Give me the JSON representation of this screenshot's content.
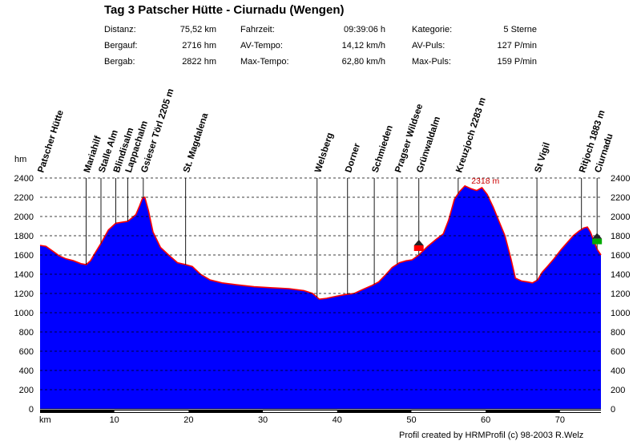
{
  "title": "Tag 3 Patscher Hütte - Ciurnadu (Wengen)",
  "stats": [
    {
      "label": "Distanz:",
      "value": "75,52 km"
    },
    {
      "label": "Bergauf:",
      "value": "2716 hm"
    },
    {
      "label": "Bergab:",
      "value": "2822 hm"
    },
    {
      "label": "Fahrzeit:",
      "value": "09:39:06 h"
    },
    {
      "label": "AV-Tempo:",
      "value": "14,12 km/h"
    },
    {
      "label": "Max-Tempo:",
      "value": "62,80 km/h"
    },
    {
      "label": "Kategorie:",
      "value": "5 Sterne"
    },
    {
      "label": "AV-Puls:",
      "value": "127 P/min"
    },
    {
      "label": "Max-Puls:",
      "value": "159 P/min"
    }
  ],
  "footer": "Profil created by HRMProfil (c) 98-2003 R.Welz",
  "colors": {
    "fill": "#0000ff",
    "line": "#ff0000",
    "grid": "#000000",
    "peak_label": "#cc0000"
  },
  "chart_data": {
    "type": "area",
    "ylabel": "hm",
    "xlabel": "km",
    "xlim": [
      0,
      75.52
    ],
    "ylim": [
      0,
      2400
    ],
    "y_ticks": [
      0,
      200,
      400,
      600,
      800,
      1000,
      1200,
      1400,
      1600,
      1800,
      2000,
      2200,
      2400
    ],
    "x_ticks": [
      10,
      20,
      30,
      40,
      50,
      60,
      70
    ],
    "grid": "horizontal dashed",
    "max_label": {
      "text": "2318 m",
      "x": 57.2,
      "y": 2318
    },
    "x": [
      0,
      0.8,
      1.7,
      2.6,
      3.5,
      4.5,
      5.5,
      6.2,
      6.8,
      7.4,
      8.2,
      9.2,
      10.2,
      11.0,
      11.8,
      12.3,
      12.9,
      13.4,
      13.8,
      14.1,
      14.6,
      15.2,
      16.2,
      17.3,
      18.5,
      19.6,
      20.5,
      21.6,
      22.9,
      24.5,
      26.5,
      28.8,
      31.0,
      33.5,
      35.5,
      36.7,
      37.6,
      38.6,
      39.8,
      41.2,
      42.3,
      43.4,
      44.6,
      45.6,
      46.6,
      47.4,
      48.4,
      49.3,
      50.1,
      51.0,
      52.2,
      53.3,
      54.3,
      55.0,
      55.8,
      56.5,
      57.2,
      58.0,
      58.8,
      59.5,
      60.2,
      61.0,
      61.8,
      62.6,
      63.4,
      64.0,
      64.8,
      65.6,
      66.3,
      67.0,
      67.6,
      68.3,
      69.2,
      70.2,
      71.0,
      71.8,
      72.6,
      73.2,
      73.7,
      74.1,
      74.6,
      75.0,
      75.52
    ],
    "y": [
      1700,
      1690,
      1640,
      1590,
      1560,
      1540,
      1510,
      1500,
      1540,
      1620,
      1720,
      1860,
      1930,
      1940,
      1950,
      1980,
      2020,
      2110,
      2190,
      2200,
      2060,
      1840,
      1680,
      1600,
      1520,
      1500,
      1480,
      1400,
      1340,
      1310,
      1290,
      1270,
      1260,
      1250,
      1230,
      1200,
      1140,
      1150,
      1170,
      1190,
      1200,
      1240,
      1280,
      1320,
      1400,
      1470,
      1520,
      1540,
      1550,
      1600,
      1690,
      1760,
      1820,
      1960,
      2180,
      2260,
      2318,
      2290,
      2270,
      2300,
      2230,
      2100,
      1950,
      1800,
      1560,
      1360,
      1330,
      1320,
      1310,
      1340,
      1420,
      1480,
      1560,
      1660,
      1730,
      1800,
      1850,
      1880,
      1890,
      1840,
      1740,
      1660,
      1600
    ],
    "waypoints": [
      {
        "name": "Patscher Hütte",
        "x": 0
      },
      {
        "name": "Mariahilf",
        "x": 6.2
      },
      {
        "name": "Stalle Alm",
        "x": 8.2
      },
      {
        "name": "Blindisalm",
        "x": 10.2
      },
      {
        "name": "Lappachalm",
        "x": 11.8
      },
      {
        "name": "Gsieser Törl 2205 m",
        "x": 13.9
      },
      {
        "name": "St. Magdalena",
        "x": 19.6
      },
      {
        "name": "Welsberg",
        "x": 37.3
      },
      {
        "name": "Dorner",
        "x": 41.4
      },
      {
        "name": "Schmieden",
        "x": 45.0
      },
      {
        "name": "Pragser Wildsee",
        "x": 48.1
      },
      {
        "name": "Grünwaldalm",
        "x": 51.0
      },
      {
        "name": "Kreuzjoch 2283 m",
        "x": 56.3
      },
      {
        "name": "St Vigil",
        "x": 66.9
      },
      {
        "name": "Ritjoch 1883 m",
        "x": 72.9
      },
      {
        "name": "Ciurnadu",
        "x": 75.0
      }
    ],
    "markers": [
      {
        "name": "red marker",
        "x": 51.0,
        "y": 1650,
        "color": "#ff0000"
      },
      {
        "name": "green marker",
        "x": 75.0,
        "y": 1720,
        "color": "#00aa00"
      }
    ]
  }
}
